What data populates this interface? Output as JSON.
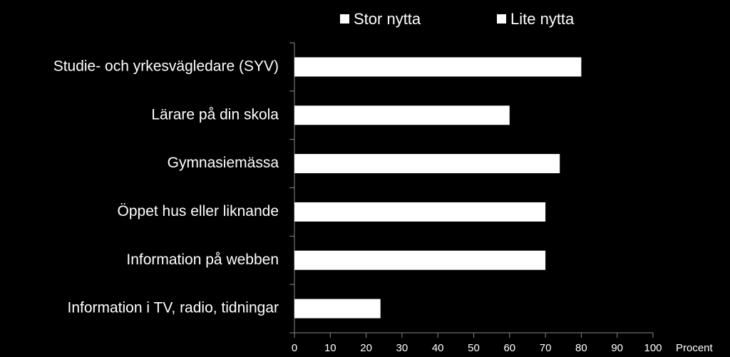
{
  "chart_data": {
    "type": "bar",
    "orientation": "horizontal",
    "categories": [
      "Studie- och yrkesvägledare (SYV)",
      "Lärare på din skola",
      "Gymnasiemässa",
      "Öppet hus eller liknande",
      "Information på webben",
      "Information i TV, radio, tidningar"
    ],
    "series": [
      {
        "name": "Stor nytta",
        "color": "#ffffff",
        "values": [
          80,
          60,
          74,
          70,
          70,
          24
        ]
      },
      {
        "name": "Lite nytta",
        "color": "#ffffff",
        "values": [
          null,
          null,
          null,
          null,
          null,
          null
        ]
      }
    ],
    "xlabel": "Procent",
    "xlim": [
      0,
      100
    ],
    "xticks": [
      0,
      10,
      20,
      30,
      40,
      50,
      60,
      70,
      80,
      90,
      100
    ],
    "legend": "top",
    "grid": false
  }
}
